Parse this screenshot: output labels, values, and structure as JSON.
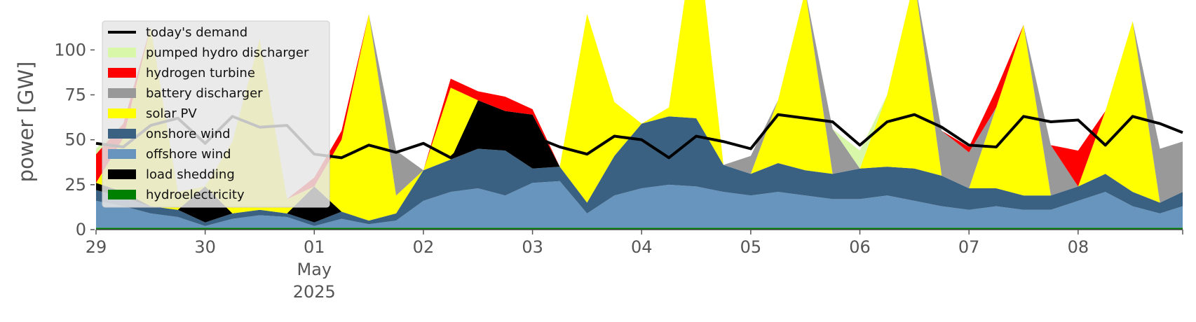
{
  "chart_data": {
    "type": "area",
    "title": "",
    "ylabel": "power [GW]",
    "ylim": [
      0,
      120
    ],
    "yticks": [
      0,
      25,
      50,
      75,
      100
    ],
    "x_start": "2025-04-29T00:00",
    "x_end": "2025-05-08T23:00",
    "xticks": [
      {
        "date": "2025-04-29",
        "label": "29"
      },
      {
        "date": "2025-04-30",
        "label": "30"
      },
      {
        "date": "2025-05-01",
        "label": "01",
        "sublabel1": "May",
        "sublabel2": "2025"
      },
      {
        "date": "2025-05-02",
        "label": "02"
      },
      {
        "date": "2025-05-03",
        "label": "03"
      },
      {
        "date": "2025-05-04",
        "label": "04"
      },
      {
        "date": "2025-05-05",
        "label": "05"
      },
      {
        "date": "2025-05-06",
        "label": "06"
      },
      {
        "date": "2025-05-07",
        "label": "07"
      },
      {
        "date": "2025-05-08",
        "label": "08"
      }
    ],
    "legend_position": "top-left",
    "legend": [
      {
        "label": "today's demand",
        "color": "#000000",
        "kind": "line"
      },
      {
        "label": "pumped hydro discharger",
        "color": "#d9f7a8",
        "kind": "patch"
      },
      {
        "label": "hydrogen turbine",
        "color": "#ff0000",
        "kind": "patch"
      },
      {
        "label": "battery discharger",
        "color": "#999999",
        "kind": "patch"
      },
      {
        "label": "solar PV",
        "color": "#ffff00",
        "kind": "patch"
      },
      {
        "label": "onshore wind",
        "color": "#3b6182",
        "kind": "patch"
      },
      {
        "label": "offshore wind",
        "color": "#6895bd",
        "kind": "patch"
      },
      {
        "label": "load shedding",
        "color": "#000000",
        "kind": "patch"
      },
      {
        "label": "hydroelectricity",
        "color": "#008000",
        "kind": "patch"
      }
    ],
    "stack_order": [
      "hydroelectricity",
      "offshore wind",
      "onshore wind",
      "load shedding",
      "solar PV",
      "battery discharger",
      "hydrogen turbine",
      "pumped hydro discharger"
    ],
    "x": [
      "2025-04-29T00:00",
      "2025-04-29T06:00",
      "2025-04-29T12:00",
      "2025-04-29T18:00",
      "2025-04-30T00:00",
      "2025-04-30T06:00",
      "2025-04-30T12:00",
      "2025-04-30T18:00",
      "2025-05-01T00:00",
      "2025-05-01T06:00",
      "2025-05-01T12:00",
      "2025-05-01T18:00",
      "2025-05-02T00:00",
      "2025-05-02T06:00",
      "2025-05-02T12:00",
      "2025-05-02T18:00",
      "2025-05-03T00:00",
      "2025-05-03T06:00",
      "2025-05-03T12:00",
      "2025-05-03T18:00",
      "2025-05-04T00:00",
      "2025-05-04T06:00",
      "2025-05-04T12:00",
      "2025-05-04T18:00",
      "2025-05-05T00:00",
      "2025-05-05T06:00",
      "2025-05-05T12:00",
      "2025-05-05T18:00",
      "2025-05-06T00:00",
      "2025-05-06T06:00",
      "2025-05-06T12:00",
      "2025-05-06T18:00",
      "2025-05-07T00:00",
      "2025-05-07T06:00",
      "2025-05-07T12:00",
      "2025-05-07T18:00",
      "2025-05-08T00:00",
      "2025-05-08T06:00",
      "2025-05-08T12:00",
      "2025-05-08T18:00",
      "2025-05-08T23:00"
    ],
    "series": [
      {
        "name": "hydroelectricity",
        "color": "#008000",
        "values": [
          1,
          1,
          1,
          1,
          1,
          1,
          1,
          1,
          1,
          1,
          1,
          1,
          1,
          1,
          1,
          1,
          1,
          1,
          1,
          1,
          1,
          1,
          1,
          1,
          1,
          1,
          1,
          1,
          1,
          1,
          1,
          1,
          1,
          1,
          1,
          1,
          1,
          1,
          1,
          1,
          1
        ]
      },
      {
        "name": "offshore wind",
        "color": "#6895bd",
        "values": [
          15,
          12,
          8,
          6,
          1,
          5,
          7,
          6,
          1,
          5,
          2,
          4,
          15,
          20,
          22,
          18,
          25,
          26,
          8,
          18,
          22,
          24,
          23,
          20,
          18,
          20,
          18,
          16,
          16,
          18,
          15,
          12,
          10,
          12,
          10,
          10,
          15,
          20,
          12,
          8,
          12
        ]
      },
      {
        "name": "onshore wind",
        "color": "#3b6182",
        "values": [
          6,
          5,
          4,
          4,
          2,
          3,
          3,
          2,
          2,
          4,
          2,
          4,
          17,
          18,
          22,
          25,
          8,
          8,
          6,
          22,
          36,
          38,
          38,
          15,
          12,
          16,
          14,
          14,
          17,
          16,
          18,
          17,
          12,
          10,
          8,
          8,
          8,
          10,
          8,
          6,
          8
        ]
      },
      {
        "name": "load shedding",
        "color": "#000000",
        "values": [
          4,
          3,
          0,
          0,
          20,
          0,
          0,
          0,
          20,
          0,
          0,
          0,
          0,
          0,
          27,
          22,
          30,
          0,
          0,
          0,
          0,
          0,
          0,
          0,
          0,
          0,
          0,
          0,
          0,
          0,
          0,
          0,
          0,
          0,
          0,
          0,
          0,
          0,
          0,
          0,
          0
        ]
      },
      {
        "name": "solar PV",
        "color": "#ffff00",
        "values": [
          0,
          30,
          100,
          10,
          0,
          40,
          95,
          8,
          0,
          40,
          115,
          10,
          0,
          40,
          0,
          0,
          0,
          0,
          105,
          30,
          0,
          5,
          110,
          0,
          0,
          35,
          100,
          0,
          0,
          40,
          105,
          0,
          0,
          45,
          95,
          0,
          0,
          35,
          95,
          0,
          0
        ]
      },
      {
        "name": "battery discharger",
        "color": "#999999",
        "values": [
          0,
          0,
          0,
          0,
          0,
          0,
          0,
          0,
          0,
          0,
          0,
          25,
          0,
          0,
          0,
          0,
          0,
          0,
          0,
          0,
          0,
          0,
          0,
          0,
          10,
          0,
          0,
          25,
          0,
          0,
          0,
          25,
          20,
          0,
          0,
          28,
          0,
          0,
          0,
          30,
          28
        ]
      },
      {
        "name": "hydrogen turbine",
        "color": "#ff0000",
        "values": [
          16,
          8,
          0,
          0,
          0,
          0,
          0,
          0,
          5,
          5,
          0,
          0,
          0,
          5,
          5,
          8,
          3,
          0,
          0,
          0,
          0,
          0,
          0,
          0,
          0,
          0,
          0,
          0,
          0,
          0,
          0,
          0,
          3,
          10,
          0,
          0,
          20,
          0,
          0,
          0,
          0
        ]
      },
      {
        "name": "pumped hydro discharger",
        "color": "#d9f7a8",
        "values": [
          3,
          0,
          0,
          0,
          0,
          0,
          0,
          0,
          0,
          0,
          0,
          0,
          0,
          0,
          0,
          0,
          0,
          0,
          0,
          0,
          0,
          0,
          0,
          0,
          0,
          0,
          0,
          0,
          10,
          0,
          0,
          0,
          0,
          0,
          0,
          0,
          0,
          0,
          0,
          0,
          0
        ]
      }
    ],
    "demand": {
      "name": "today's demand",
      "color": "#000000",
      "values": [
        48,
        46,
        58,
        62,
        48,
        63,
        57,
        58,
        42,
        40,
        47,
        43,
        48,
        40,
        54,
        53,
        52,
        46,
        42,
        52,
        50,
        40,
        52,
        49,
        45,
        64,
        62,
        60,
        47,
        60,
        64,
        57,
        47,
        46,
        63,
        60,
        61,
        47,
        63,
        59,
        54
      ]
    }
  }
}
